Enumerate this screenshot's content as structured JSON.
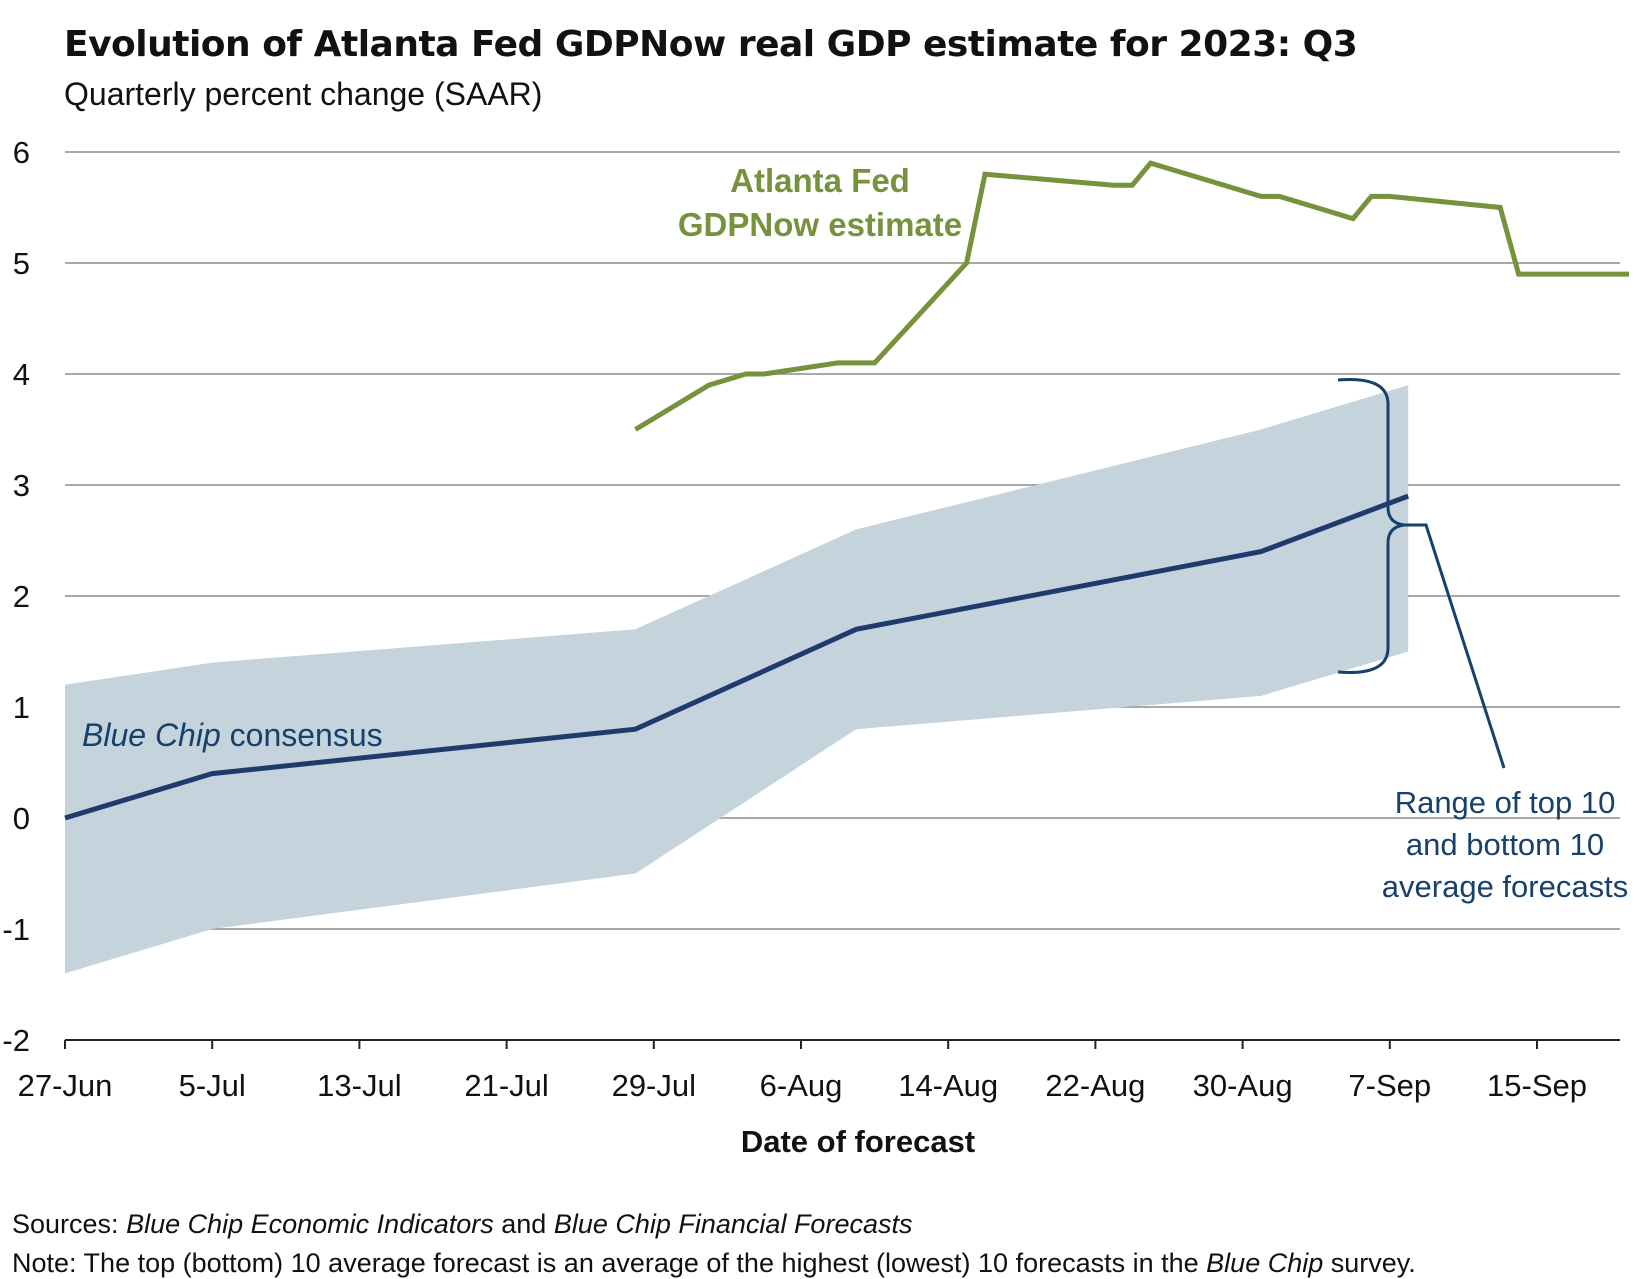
{
  "chart_data": {
    "type": "line",
    "title": "Evolution of Atlanta Fed GDPNow real GDP estimate for 2023: Q3",
    "subtitle": "Quarterly percent change (SAAR)",
    "xlabel": "Date of forecast",
    "ylabel": "",
    "x_range": [
      "2023-06-27",
      "2023-09-20"
    ],
    "ylim": [
      -2,
      6
    ],
    "grid": true,
    "y_ticks": [
      "-2",
      "-1",
      "0",
      "1",
      "2",
      "3",
      "4",
      "5",
      "6"
    ],
    "x_ticks": [
      "27-Jun",
      "5-Jul",
      "13-Jul",
      "21-Jul",
      "29-Jul",
      "6-Aug",
      "14-Aug",
      "22-Aug",
      "30-Aug",
      "7-Sep",
      "15-Sep"
    ],
    "colors": {
      "gdpnow": "#76923c",
      "consensus": "#1f3b6e",
      "band": "#c5d3dc",
      "annotation": "#17416b",
      "grid": "#8c8c8c"
    },
    "series": [
      {
        "name": "Atlanta Fed GDPNow estimate",
        "label_lines": [
          "Atlanta Fed",
          "GDPNow estimate"
        ],
        "x": [
          "2023-07-28",
          "2023-08-01",
          "2023-08-03",
          "2023-08-04",
          "2023-08-08",
          "2023-08-10",
          "2023-08-15",
          "2023-08-16",
          "2023-08-23",
          "2023-08-24",
          "2023-08-25",
          "2023-08-31",
          "2023-09-01",
          "2023-09-05",
          "2023-09-06",
          "2023-09-07",
          "2023-09-13",
          "2023-09-14",
          "2023-09-20"
        ],
        "values": [
          3.5,
          3.9,
          4.0,
          4.0,
          4.1,
          4.1,
          5.0,
          5.8,
          5.7,
          5.7,
          5.9,
          5.6,
          5.6,
          5.4,
          5.6,
          5.6,
          5.5,
          4.9,
          4.9
        ]
      },
      {
        "name": "Blue Chip consensus",
        "label_italic": "Blue Chip",
        "label_rest": " consensus",
        "x": [
          "2023-06-27",
          "2023-07-05",
          "2023-07-28",
          "2023-08-09",
          "2023-08-31",
          "2023-09-08"
        ],
        "values": [
          0.0,
          0.4,
          0.8,
          1.7,
          2.4,
          2.9
        ]
      },
      {
        "name": "Range of top 10 and bottom 10 average forecasts",
        "label_lines": [
          "Range of top 10",
          "and bottom 10",
          "average forecasts"
        ],
        "x": [
          "2023-06-27",
          "2023-07-05",
          "2023-07-28",
          "2023-08-09",
          "2023-08-31",
          "2023-09-08"
        ],
        "upper": [
          1.2,
          1.4,
          1.7,
          2.6,
          3.5,
          3.9
        ],
        "lower": [
          -1.4,
          -1.0,
          -0.5,
          0.8,
          1.1,
          1.5
        ]
      }
    ]
  },
  "footer": {
    "sources_label": "Sources:",
    "sources_text_1": " Blue Chip Economic Indicators",
    "sources_text_2": " and ",
    "sources_text_3": "Blue Chip Financial Forecasts",
    "note_label": "Note:",
    "note_text_1": " The top (bottom) 10 average forecast is an average of the highest (lowest) 10 forecasts in the ",
    "note_text_2": "Blue Chip",
    "note_text_3": " survey."
  }
}
